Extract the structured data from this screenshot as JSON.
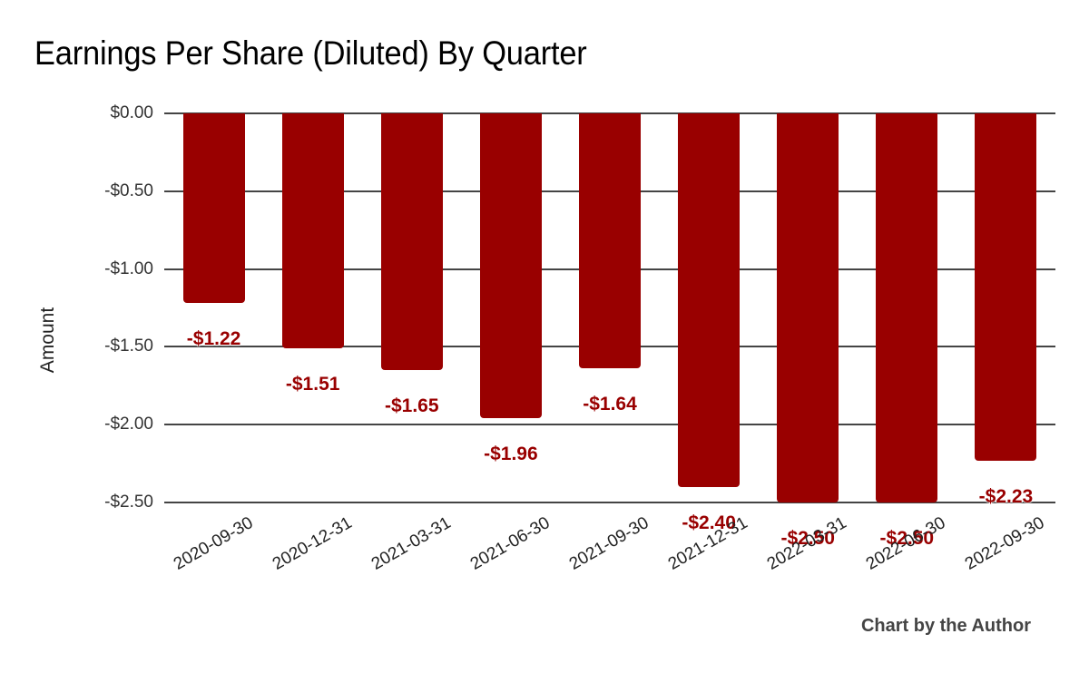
{
  "chart_data": {
    "type": "bar",
    "title": "Earnings Per Share (Diluted) By Quarter",
    "xlabel": "",
    "ylabel": "Amount",
    "categories": [
      "2020-09-30",
      "2020-12-31",
      "2021-03-31",
      "2021-06-30",
      "2021-09-30",
      "2021-12-31",
      "2022-03-31",
      "2022-06-30",
      "2022-09-30"
    ],
    "values": [
      -1.22,
      -1.51,
      -1.65,
      -1.96,
      -1.64,
      -2.4,
      -2.5,
      -2.5,
      -2.23
    ],
    "value_labels": [
      "-$1.22",
      "-$1.51",
      "-$1.65",
      "-$1.96",
      "-$1.64",
      "-$2.40",
      "-$2.50",
      "-$2.50",
      "-$2.23"
    ],
    "ylim": [
      -2.5,
      0
    ],
    "yticks": [
      0,
      -0.5,
      -1.0,
      -1.5,
      -2.0,
      -2.5
    ],
    "ytick_labels": [
      "$0.00",
      "-$0.50",
      "-$1.00",
      "-$1.50",
      "-$2.00",
      "-$2.50"
    ],
    "grid": true,
    "legend": "none",
    "bar_color": "#990000",
    "label_color": "#990000",
    "annotation": "Chart by the Author"
  }
}
